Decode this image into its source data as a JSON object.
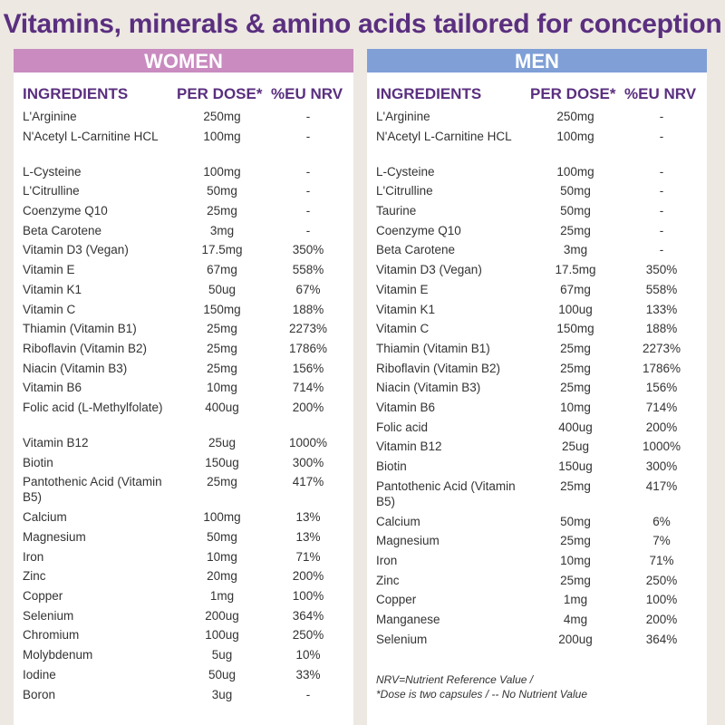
{
  "title": "Vitamins, minerals & amino acids tailored for conception",
  "headers": {
    "ingredients": "INGREDIENTS",
    "dose": "PER DOSE*",
    "nrv": "%EU NRV"
  },
  "women": {
    "label": "WOMEN",
    "rows": [
      [
        "L'Arginine",
        "250mg",
        "-"
      ],
      [
        "N'Acetyl L-Carnitine HCL",
        "100mg",
        "-"
      ],
      [
        "L-Cysteine",
        "100mg",
        "-"
      ],
      [
        "L'Citrulline",
        "50mg",
        "-"
      ],
      [
        "Coenzyme Q10",
        "25mg",
        "-"
      ],
      [
        "Beta Carotene",
        "3mg",
        "-"
      ],
      [
        "Vitamin D3 (Vegan)",
        "17.5mg",
        "350%"
      ],
      [
        "Vitamin E",
        "67mg",
        "558%"
      ],
      [
        "Vitamin K1",
        "50ug",
        "67%"
      ],
      [
        "Vitamin C",
        "150mg",
        "188%"
      ],
      [
        "Thiamin (Vitamin B1)",
        "25mg",
        "2273%"
      ],
      [
        "Riboflavin (Vitamin B2)",
        "25mg",
        "1786%"
      ],
      [
        "Niacin (Vitamin B3)",
        "25mg",
        "156%"
      ],
      [
        "Vitamin B6",
        "10mg",
        "714%"
      ],
      [
        "Folic acid (L-Methylfolate)",
        "400ug",
        "200%"
      ],
      [
        "Vitamin B12",
        "25ug",
        "1000%"
      ],
      [
        "Biotin",
        "150ug",
        "300%"
      ],
      [
        "Pantothenic Acid (Vitamin B5)",
        "25mg",
        "417%"
      ],
      [
        "Calcium",
        "100mg",
        "13%"
      ],
      [
        "Magnesium",
        "50mg",
        "13%"
      ],
      [
        "Iron",
        "10mg",
        "71%"
      ],
      [
        "Zinc",
        "20mg",
        "200%"
      ],
      [
        "Copper",
        "1mg",
        "100%"
      ],
      [
        "Selenium",
        "200ug",
        "364%"
      ],
      [
        "Chromium",
        "100ug",
        "250%"
      ],
      [
        "Molybdenum",
        "5ug",
        "10%"
      ],
      [
        "Iodine",
        "50ug",
        "33%"
      ],
      [
        "Boron",
        "3ug",
        "-"
      ]
    ]
  },
  "men": {
    "label": "MEN",
    "rows": [
      [
        "L'Arginine",
        "250mg",
        "-"
      ],
      [
        "N'Acetyl L-Carnitine HCL",
        "100mg",
        "-"
      ],
      [
        "L-Cysteine",
        "100mg",
        "-"
      ],
      [
        "L'Citrulline",
        "50mg",
        "-"
      ],
      [
        "Taurine",
        "50mg",
        "-"
      ],
      [
        "Coenzyme Q10",
        "25mg",
        "-"
      ],
      [
        "Beta Carotene",
        "3mg",
        "-"
      ],
      [
        "Vitamin D3 (Vegan)",
        "17.5mg",
        "350%"
      ],
      [
        "Vitamin E",
        "67mg",
        "558%"
      ],
      [
        "Vitamin K1",
        "100ug",
        "133%"
      ],
      [
        "Vitamin C",
        "150mg",
        "188%"
      ],
      [
        "Thiamin (Vitamin B1)",
        "25mg",
        "2273%"
      ],
      [
        "Riboflavin (Vitamin B2)",
        "25mg",
        "1786%"
      ],
      [
        "Niacin (Vitamin B3)",
        "25mg",
        "156%"
      ],
      [
        "Vitamin B6",
        "10mg",
        "714%"
      ],
      [
        "Folic acid",
        "400ug",
        "200%"
      ],
      [
        "Vitamin B12",
        "25ug",
        "1000%"
      ],
      [
        "Biotin",
        "150ug",
        "300%"
      ],
      [
        "Pantothenic Acid (Vitamin B5)",
        "25mg",
        "417%"
      ],
      [
        "Calcium",
        "50mg",
        "6%"
      ],
      [
        "Magnesium",
        "25mg",
        "7%"
      ],
      [
        "Iron",
        "10mg",
        "71%"
      ],
      [
        "Zinc",
        "25mg",
        "250%"
      ],
      [
        "Copper",
        "1mg",
        "100%"
      ],
      [
        "Manganese",
        "4mg",
        "200%"
      ],
      [
        "Selenium",
        "200ug",
        "364%"
      ]
    ],
    "footnote": [
      "NRV=Nutrient Reference Value /",
      "*Dose is two capsules / -- No Nutrient Value"
    ]
  },
  "colors": {
    "title": "#5a2f7f",
    "women_band": "#c98bc0",
    "men_band": "#7f9fd6",
    "background": "#ede8e2"
  }
}
